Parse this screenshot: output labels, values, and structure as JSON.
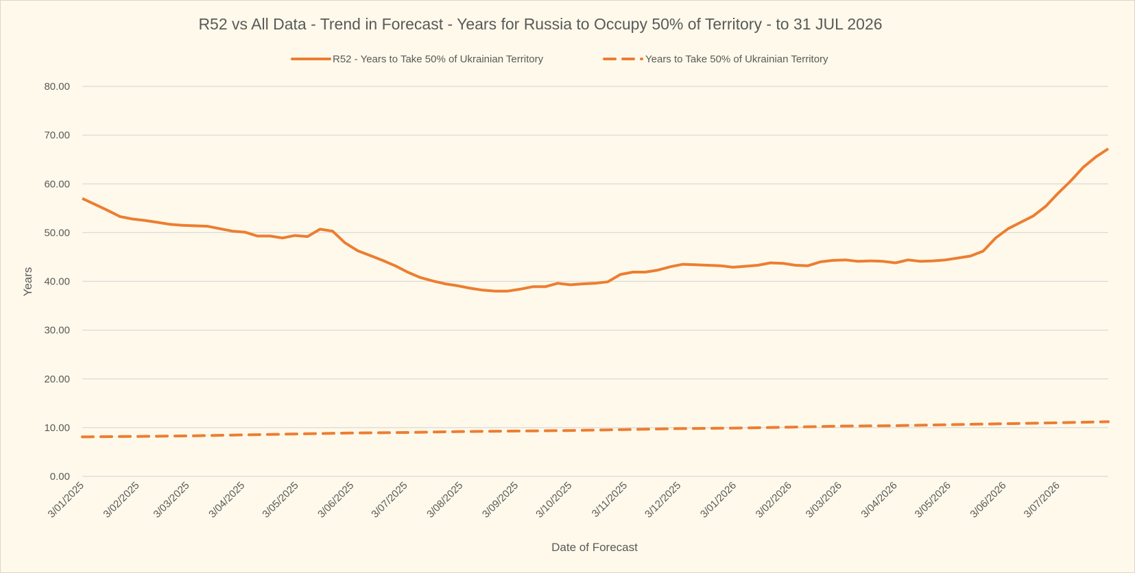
{
  "chart_data": {
    "type": "line",
    "title": "R52 vs All Data  - Trend in Forecast - Years for Russia to Occupy 50% of Territory - to 31 JUL 2026",
    "xlabel": "Date of Forecast",
    "ylabel": "Years",
    "ylim": [
      0,
      80
    ],
    "yticks": [
      "0.00",
      "10.00",
      "20.00",
      "30.00",
      "40.00",
      "50.00",
      "60.00",
      "70.00",
      "80.00"
    ],
    "x_start": "3/01/2025",
    "x_end": "31/07/2026",
    "xticks": [
      "3/01/2025",
      "3/02/2025",
      "3/03/2025",
      "3/04/2025",
      "3/05/2025",
      "3/06/2025",
      "3/07/2025",
      "3/08/2025",
      "3/09/2025",
      "3/10/2025",
      "3/11/2025",
      "3/12/2025",
      "3/01/2026",
      "3/02/2026",
      "3/03/2026",
      "3/04/2026",
      "3/05/2026",
      "3/06/2026",
      "3/07/2026"
    ],
    "grid": true,
    "legend_position": "top",
    "colors": {
      "series": "#ed7d31",
      "grid": "#d9d9d9",
      "text": "#595959",
      "background": "#fef9ea"
    },
    "series": [
      {
        "name": "R52 - Years to Take  50% of Ukrainian Territory",
        "style": "solid",
        "points": [
          [
            "3/01/2025",
            57.0
          ],
          [
            "10/01/2025",
            55.8
          ],
          [
            "17/01/2025",
            54.6
          ],
          [
            "24/01/2025",
            53.3
          ],
          [
            "31/01/2025",
            52.8
          ],
          [
            "7/02/2025",
            52.5
          ],
          [
            "14/02/2025",
            52.1
          ],
          [
            "21/02/2025",
            51.7
          ],
          [
            "28/02/2025",
            51.5
          ],
          [
            "7/03/2025",
            51.4
          ],
          [
            "14/03/2025",
            51.3
          ],
          [
            "21/03/2025",
            50.8
          ],
          [
            "28/03/2025",
            50.3
          ],
          [
            "4/04/2025",
            50.1
          ],
          [
            "11/04/2025",
            49.3
          ],
          [
            "18/04/2025",
            49.3
          ],
          [
            "25/04/2025",
            48.9
          ],
          [
            "2/05/2025",
            49.4
          ],
          [
            "9/05/2025",
            49.2
          ],
          [
            "16/05/2025",
            50.7
          ],
          [
            "23/05/2025",
            50.3
          ],
          [
            "30/05/2025",
            47.9
          ],
          [
            "6/06/2025",
            46.3
          ],
          [
            "13/06/2025",
            45.3
          ],
          [
            "20/06/2025",
            44.3
          ],
          [
            "27/06/2025",
            43.2
          ],
          [
            "4/07/2025",
            41.9
          ],
          [
            "11/07/2025",
            40.8
          ],
          [
            "18/07/2025",
            40.1
          ],
          [
            "25/07/2025",
            39.5
          ],
          [
            "1/08/2025",
            39.1
          ],
          [
            "8/08/2025",
            38.6
          ],
          [
            "15/08/2025",
            38.2
          ],
          [
            "22/08/2025",
            38.0
          ],
          [
            "29/08/2025",
            38.0
          ],
          [
            "5/09/2025",
            38.4
          ],
          [
            "12/09/2025",
            38.9
          ],
          [
            "19/09/2025",
            38.9
          ],
          [
            "26/09/2025",
            39.6
          ],
          [
            "3/10/2025",
            39.3
          ],
          [
            "10/10/2025",
            39.5
          ],
          [
            "17/10/2025",
            39.6
          ],
          [
            "24/10/2025",
            39.9
          ],
          [
            "31/10/2025",
            41.4
          ],
          [
            "7/11/2025",
            41.9
          ],
          [
            "14/11/2025",
            41.9
          ],
          [
            "21/11/2025",
            42.3
          ],
          [
            "28/11/2025",
            43.0
          ],
          [
            "5/12/2025",
            43.5
          ],
          [
            "12/12/2025",
            43.4
          ],
          [
            "19/12/2025",
            43.3
          ],
          [
            "26/12/2025",
            43.2
          ],
          [
            "2/01/2026",
            42.9
          ],
          [
            "9/01/2026",
            43.1
          ],
          [
            "16/01/2026",
            43.3
          ],
          [
            "23/01/2026",
            43.8
          ],
          [
            "30/01/2026",
            43.7
          ],
          [
            "6/02/2026",
            43.3
          ],
          [
            "13/02/2026",
            43.2
          ],
          [
            "20/02/2026",
            44.0
          ],
          [
            "27/02/2026",
            44.3
          ],
          [
            "6/03/2026",
            44.4
          ],
          [
            "13/03/2026",
            44.1
          ],
          [
            "20/03/2026",
            44.2
          ],
          [
            "27/03/2026",
            44.1
          ],
          [
            "3/04/2026",
            43.8
          ],
          [
            "10/04/2026",
            44.4
          ],
          [
            "17/04/2026",
            44.1
          ],
          [
            "24/04/2026",
            44.2
          ],
          [
            "1/05/2026",
            44.4
          ],
          [
            "8/05/2026",
            44.8
          ],
          [
            "15/05/2026",
            45.2
          ],
          [
            "22/05/2026",
            46.2
          ],
          [
            "29/05/2026",
            48.9
          ],
          [
            "5/06/2026",
            50.8
          ],
          [
            "12/06/2026",
            52.1
          ],
          [
            "19/06/2026",
            53.4
          ],
          [
            "26/06/2026",
            55.4
          ],
          [
            "3/07/2026",
            58.1
          ],
          [
            "10/07/2026",
            60.6
          ],
          [
            "17/07/2026",
            63.4
          ],
          [
            "24/07/2026",
            65.5
          ],
          [
            "31/07/2026",
            67.2
          ]
        ]
      },
      {
        "name": "Years to Take  50% of Ukrainian Territory",
        "style": "dashed",
        "points": [
          [
            "3/01/2025",
            8.1
          ],
          [
            "3/02/2025",
            8.2
          ],
          [
            "3/03/2025",
            8.3
          ],
          [
            "3/04/2025",
            8.5
          ],
          [
            "3/05/2025",
            8.7
          ],
          [
            "3/06/2025",
            8.9
          ],
          [
            "3/07/2025",
            9.0
          ],
          [
            "3/08/2025",
            9.2
          ],
          [
            "3/09/2025",
            9.3
          ],
          [
            "3/10/2025",
            9.4
          ],
          [
            "3/11/2025",
            9.6
          ],
          [
            "3/12/2025",
            9.8
          ],
          [
            "3/01/2026",
            9.9
          ],
          [
            "3/02/2026",
            10.1
          ],
          [
            "3/03/2026",
            10.3
          ],
          [
            "3/04/2026",
            10.4
          ],
          [
            "3/05/2026",
            10.6
          ],
          [
            "3/06/2026",
            10.8
          ],
          [
            "3/07/2026",
            11.0
          ],
          [
            "31/07/2026",
            11.2
          ]
        ]
      }
    ]
  }
}
